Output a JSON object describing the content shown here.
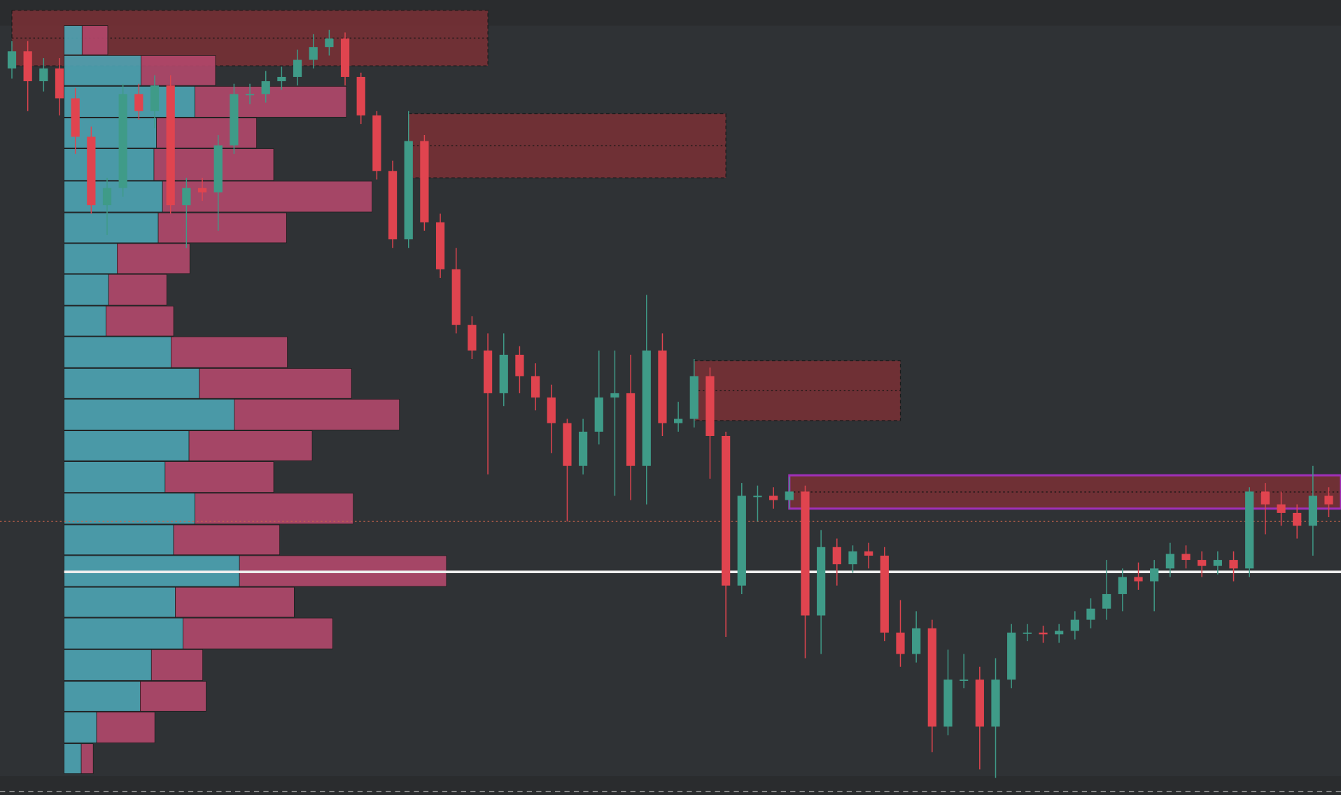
{
  "chart_data": {
    "type": "candlestick",
    "ylim": [
      0,
      930
    ],
    "xlim": [
      -0.75,
      83.77
    ],
    "series": {
      "up_color": "#3f9b88",
      "down_color": "#e0444f",
      "open": [
        850,
        870,
        835,
        850,
        815,
        770,
        690,
        710,
        820,
        800,
        830,
        690,
        710,
        705,
        760,
        820,
        820,
        835,
        840,
        860,
        875,
        885,
        840,
        795,
        730,
        650,
        765,
        670,
        615,
        550,
        520,
        470,
        515,
        490,
        465,
        435,
        385,
        425,
        465,
        470,
        385,
        520,
        435,
        440,
        490,
        420,
        245,
        350,
        350,
        345,
        355,
        210,
        290,
        270,
        285,
        280,
        190,
        165,
        195,
        80,
        135,
        135,
        80,
        135,
        190,
        190,
        188,
        192,
        205,
        218,
        235,
        255,
        250,
        265,
        282,
        275,
        268,
        275,
        265,
        355,
        340,
        330,
        315,
        350
      ],
      "high": [
        882,
        882,
        862,
        862,
        827,
        782,
        722,
        832,
        832,
        842,
        842,
        722,
        722,
        772,
        832,
        832,
        847,
        852,
        872,
        890,
        895,
        892,
        845,
        800,
        742,
        800,
        772,
        680,
        640,
        560,
        540,
        540,
        525,
        505,
        480,
        440,
        440,
        520,
        520,
        515,
        585,
        540,
        460,
        510,
        500,
        425,
        365,
        362,
        360,
        372,
        362,
        310,
        300,
        292,
        295,
        290,
        228,
        215,
        205,
        170,
        165,
        150,
        160,
        200,
        200,
        198,
        200,
        215,
        230,
        275,
        265,
        272,
        275,
        295,
        292,
        285,
        285,
        285,
        360,
        365,
        355,
        340,
        385,
        360
      ],
      "low": [
        838,
        800,
        823,
        795,
        750,
        680,
        655,
        700,
        790,
        780,
        680,
        640,
        695,
        660,
        750,
        808,
        810,
        825,
        830,
        850,
        865,
        830,
        785,
        720,
        640,
        640,
        660,
        605,
        540,
        510,
        375,
        455,
        470,
        450,
        400,
        320,
        375,
        410,
        350,
        345,
        340,
        420,
        425,
        430,
        370,
        185,
        235,
        320,
        335,
        335,
        160,
        165,
        245,
        260,
        265,
        180,
        150,
        155,
        50,
        70,
        125,
        30,
        20,
        125,
        180,
        178,
        178,
        182,
        195,
        205,
        215,
        240,
        215,
        255,
        265,
        255,
        258,
        250,
        255,
        305,
        315,
        300,
        280,
        325
      ],
      "close": [
        870,
        835,
        850,
        815,
        770,
        690,
        710,
        820,
        800,
        830,
        690,
        710,
        705,
        760,
        820,
        820,
        835,
        840,
        860,
        875,
        885,
        840,
        795,
        730,
        650,
        765,
        670,
        615,
        550,
        520,
        470,
        515,
        490,
        465,
        435,
        385,
        425,
        465,
        470,
        385,
        520,
        435,
        440,
        490,
        420,
        245,
        350,
        350,
        345,
        355,
        210,
        290,
        270,
        285,
        280,
        190,
        165,
        195,
        80,
        135,
        135,
        80,
        135,
        190,
        190,
        188,
        192,
        205,
        218,
        235,
        255,
        250,
        265,
        282,
        275,
        268,
        275,
        265,
        355,
        340,
        330,
        315,
        350,
        340
      ]
    },
    "volume_profile": {
      "xlim": [
        0,
        1493
      ],
      "buy_color": "#4ea4b4",
      "sell_color": "#b3486b",
      "bins": [
        24,
        60,
        97,
        133,
        170,
        207,
        243,
        280,
        316,
        353,
        390,
        426,
        463,
        499,
        536,
        572,
        609,
        645,
        681,
        718,
        756,
        792,
        829,
        865,
        900
      ],
      "buy": [
        20,
        38,
        89,
        102,
        139,
        130,
        205,
        128,
        153,
        118,
        146,
        199,
        158,
        125,
        49,
        52,
        62,
        110,
        115,
        105,
        108,
        153,
        90,
        21
      ],
      "sell": [
        14,
        68,
        77,
        60,
        175,
        139,
        242,
        124,
        185,
        127,
        144,
        193,
        178,
        136,
        79,
        68,
        85,
        150,
        245,
        140,
        117,
        177,
        87,
        30
      ]
    },
    "zones": [
      {
        "low": 853,
        "high": 918,
        "start": 0,
        "end": 30,
        "color": "#7a3035",
        "border": "#1a1a1a"
      },
      {
        "low": 722,
        "high": 797,
        "start": 25,
        "end": 45,
        "color": "#7a3035",
        "border": "#1a1a1a"
      },
      {
        "low": 438,
        "high": 508,
        "start": 43,
        "end": 56,
        "color": "#7a3035",
        "border": "#1a1a1a"
      },
      {
        "low": 335,
        "high": 374,
        "start": 49,
        "end": 83.77,
        "color": "#7a3035",
        "border": "#a030b8"
      }
    ],
    "levels": [
      {
        "value": 261,
        "color": "#eeeeee",
        "style": "solid"
      },
      {
        "value": 320,
        "color": "#c8644c",
        "style": "dotted"
      }
    ]
  }
}
